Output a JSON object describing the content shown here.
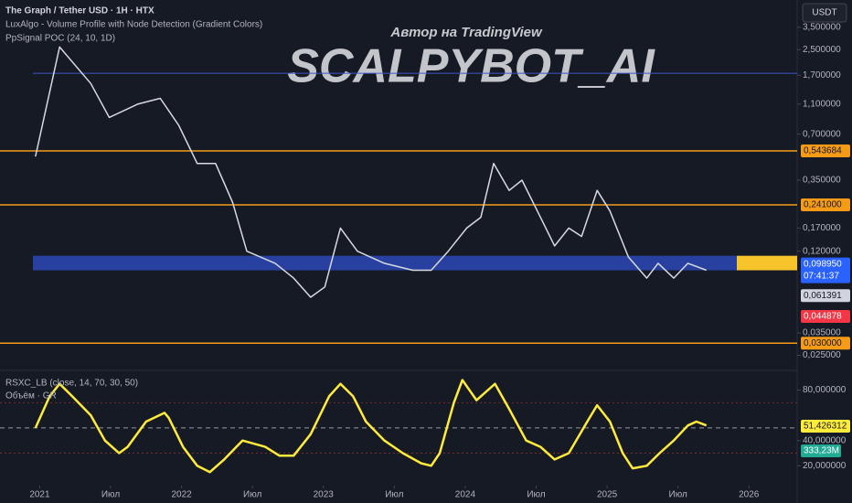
{
  "header": {
    "symbol": "The Graph / Tether USD · 1H · HTX",
    "indicator_1": "LuxAlgo - Volume Profile with Node Detection (Gradient Colors)",
    "indicator_2": "PpSignal POC (24, 10, 1D)"
  },
  "watermark": {
    "subtitle": "Автор на TradingView",
    "title": "SCALPYBOT_AI"
  },
  "currency_button": "USDT",
  "chart_data": [
    {
      "type": "line",
      "log_scale": true,
      "color": "#d8dadf",
      "x": [
        2020.97,
        2021.14,
        2021.36,
        2021.49,
        2021.69,
        2021.85,
        2021.98,
        2022.11,
        2022.24,
        2022.36,
        2022.46,
        2022.66,
        2022.79,
        2022.91,
        2023.01,
        2023.12,
        2023.24,
        2023.43,
        2023.63,
        2023.76,
        2023.88,
        2024.01,
        2024.11,
        2024.2,
        2024.31,
        2024.4,
        2024.53,
        2024.63,
        2024.73,
        2024.82,
        2024.93,
        2025.02,
        2025.15,
        2025.28,
        2025.36,
        2025.47,
        2025.57,
        2025.7
      ],
      "values": [
        0.5,
        2.6,
        1.5,
        0.9,
        1.1,
        1.2,
        0.8,
        0.45,
        0.45,
        0.25,
        0.12,
        0.1,
        0.08,
        0.06,
        0.07,
        0.17,
        0.12,
        0.1,
        0.09,
        0.09,
        0.12,
        0.17,
        0.2,
        0.45,
        0.3,
        0.35,
        0.2,
        0.13,
        0.17,
        0.15,
        0.3,
        0.22,
        0.11,
        0.08,
        0.1,
        0.08,
        0.1,
        0.09
      ],
      "xlim": [
        2020.72,
        2026.34
      ],
      "ylim": [
        0.0235,
        3.9
      ],
      "yticks": [
        {
          "value": 3.5,
          "label": "3,500000"
        },
        {
          "value": 2.5,
          "label": "2,500000"
        },
        {
          "value": 1.7,
          "label": "1,700000"
        },
        {
          "value": 1.1,
          "label": "1,100000"
        },
        {
          "value": 0.7,
          "label": "0,700000"
        },
        {
          "value": 0.35,
          "label": "0,350000"
        },
        {
          "value": 0.17,
          "label": "0,170000"
        },
        {
          "value": 0.12,
          "label": "0,120000"
        },
        {
          "value": 0.035,
          "label": "0,035000"
        },
        {
          "value": 0.025,
          "label": "0,025000"
        }
      ],
      "reference_line": 1.75,
      "poc_zone": [
        0.09,
        0.112
      ],
      "levels": [
        {
          "value": 0.543684,
          "label": "0,543684",
          "color": "#f59b17"
        },
        {
          "value": 0.241,
          "label": "0,241000",
          "color": "#f59b17"
        },
        {
          "value": 0.03,
          "label": "0,030000",
          "color": "#f59b17"
        }
      ],
      "markers": [
        {
          "value": 0.09895,
          "label": "0,098950",
          "color": "#2962ff",
          "countdown": "07:41:37"
        },
        {
          "value": 0.061391,
          "label": "0,061391",
          "color": "#d1d4dc"
        },
        {
          "value": 0.044878,
          "label": "0,044878",
          "color": "#f23645"
        }
      ]
    },
    {
      "type": "line",
      "title": "RSXC_LB (close, 14, 70, 30, 50)",
      "subtitle": "Объём · GR",
      "color": "#ffeb3b",
      "x": [
        2020.97,
        2021.07,
        2021.14,
        2021.23,
        2021.36,
        2021.46,
        2021.56,
        2021.62,
        2021.75,
        2021.88,
        2021.91,
        2022.01,
        2022.11,
        2022.2,
        2022.3,
        2022.43,
        2022.59,
        2022.69,
        2022.79,
        2022.91,
        2023.04,
        2023.12,
        2023.21,
        2023.3,
        2023.43,
        2023.56,
        2023.69,
        2023.76,
        2023.82,
        2023.92,
        2023.98,
        2024.08,
        2024.21,
        2024.31,
        2024.43,
        2024.53,
        2024.63,
        2024.73,
        2024.86,
        2024.93,
        2025.02,
        2025.11,
        2025.18,
        2025.28,
        2025.37,
        2025.47,
        2025.57,
        2025.63,
        2025.7
      ],
      "values": [
        50,
        75,
        85,
        75,
        60,
        40,
        30,
        35,
        55,
        62,
        58,
        35,
        20,
        15,
        25,
        40,
        35,
        28,
        28,
        45,
        75,
        85,
        75,
        55,
        40,
        30,
        22,
        20,
        30,
        70,
        88,
        72,
        85,
        65,
        40,
        35,
        25,
        30,
        55,
        68,
        55,
        30,
        18,
        20,
        30,
        40,
        52,
        55,
        52
      ],
      "xlim": [
        2020.72,
        2026.34
      ],
      "ylim": [
        5,
        92
      ],
      "yticks": [
        {
          "value": 80,
          "label": "80,000000"
        },
        {
          "value": 40,
          "label": "40,000000"
        },
        {
          "value": 20,
          "label": "20,000000"
        }
      ],
      "xticks": [
        {
          "value": 2021,
          "label": "2021"
        },
        {
          "value": 2021.5,
          "label": "Июл"
        },
        {
          "value": 2022,
          "label": "2022"
        },
        {
          "value": 2022.5,
          "label": "Июл"
        },
        {
          "value": 2023,
          "label": "2023"
        },
        {
          "value": 2023.5,
          "label": "Июл"
        },
        {
          "value": 2024,
          "label": "2024"
        },
        {
          "value": 2024.5,
          "label": "Июл"
        },
        {
          "value": 2025,
          "label": "2025"
        },
        {
          "value": 2025.5,
          "label": "Июл"
        },
        {
          "value": 2026,
          "label": "2026"
        }
      ],
      "upper_band": 70,
      "lower_band": 30,
      "mid_line": 50,
      "last_value": {
        "value": 51.426312,
        "label": "51,426312"
      },
      "volume_label": {
        "value": 333230000,
        "label": "333,23M"
      }
    }
  ]
}
